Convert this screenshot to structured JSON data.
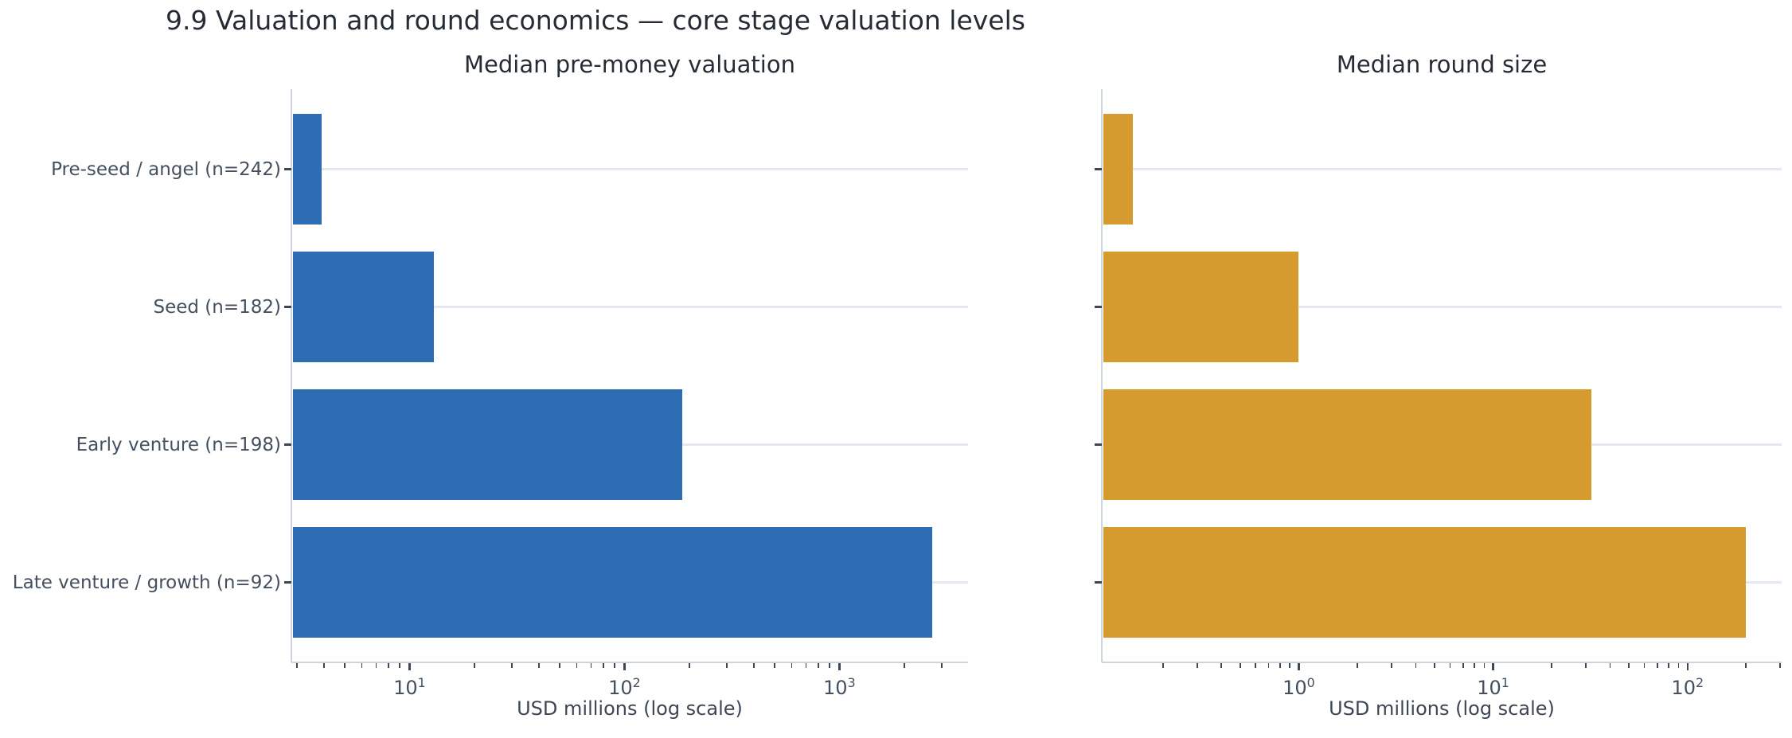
{
  "title": "9.9 Valuation and round economics — core stage valuation levels",
  "colors": {
    "bar_blue": "#2e6db3",
    "bar_orange": "#d69b2e",
    "grid": "#e4e9f1",
    "spine": "#cdd4de",
    "tick": "#3d4653",
    "tick_label": "#44505f",
    "axis_label": "#3c4654",
    "title_text": "#262c36"
  },
  "categories": [
    "Pre-seed / angel (n=242)",
    "Seed (n=182)",
    "Early venture (n=198)",
    "Late venture / growth (n=92)"
  ],
  "chart_data": [
    {
      "type": "bar",
      "orientation": "horizontal",
      "title": "Median pre-money valuation",
      "xlabel": "USD millions (log scale)",
      "xscale": "log",
      "xlim": [
        2.82,
        3970
      ],
      "major_ticks": [
        10,
        100,
        1000
      ],
      "grid": "horizontal",
      "legend": "none",
      "categories": [
        "Pre-seed / angel (n=242)",
        "Seed (n=182)",
        "Early venture (n=198)",
        "Late venture / growth (n=92)"
      ],
      "values": [
        3.9,
        13,
        185,
        2700
      ],
      "bar_color": "#2e6db3",
      "show_y_labels": true
    },
    {
      "type": "bar",
      "orientation": "horizontal",
      "title": "Median round size",
      "xlabel": "USD millions (log scale)",
      "xscale": "log",
      "xlim": [
        0.097,
        305
      ],
      "major_ticks": [
        1,
        10,
        100
      ],
      "grid": "horizontal",
      "legend": "none",
      "categories": [
        "Pre-seed / angel (n=242)",
        "Seed (n=182)",
        "Early venture (n=198)",
        "Late venture / growth (n=92)"
      ],
      "values": [
        0.14,
        1.0,
        32,
        200
      ],
      "bar_color": "#d69b2e",
      "show_y_labels": false
    }
  ]
}
